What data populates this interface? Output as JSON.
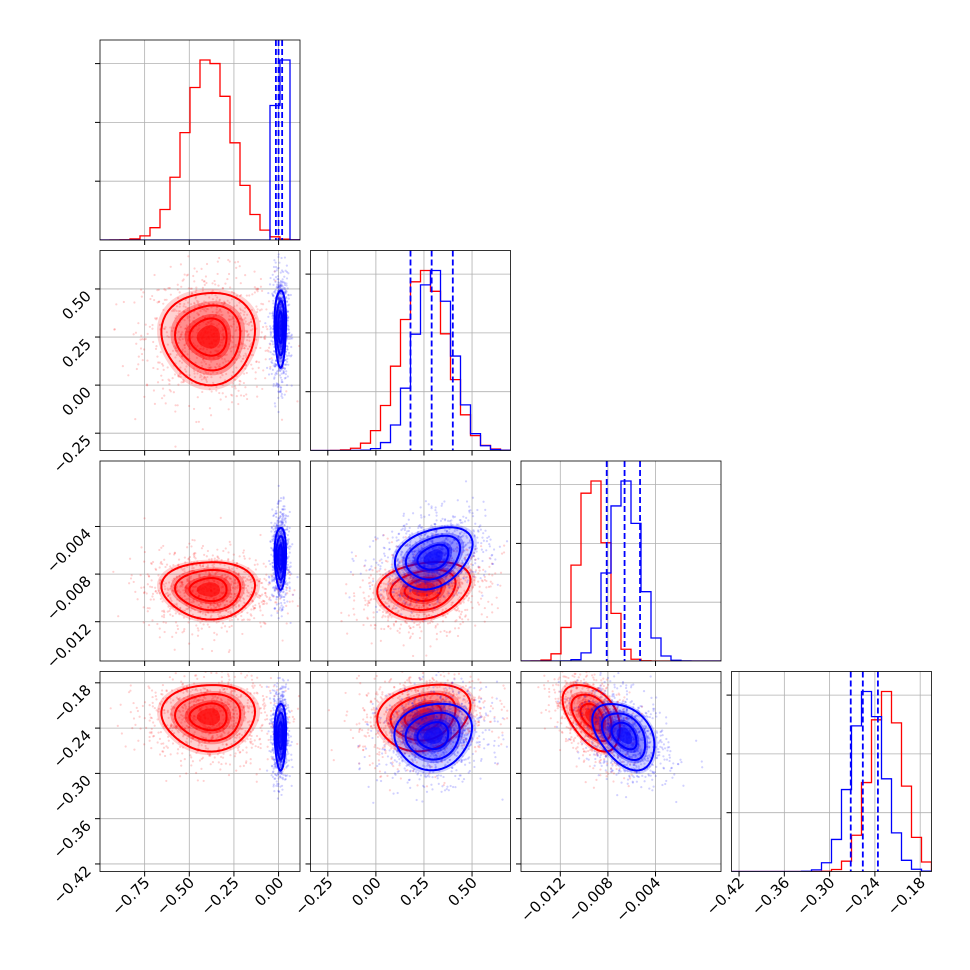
{
  "chart_data": {
    "type": "corner",
    "title": "",
    "series": [
      {
        "name": "",
        "color": "#ff0000"
      },
      {
        "name": "",
        "color": "#0000ff"
      }
    ],
    "grid": true,
    "parameters": [
      {
        "range": [
          -1.0,
          0.12
        ],
        "ticks": [
          -0.75,
          -0.5,
          -0.25,
          0.0
        ],
        "tick_labels": [
          "−0.75",
          "−0.50",
          "−0.25",
          "0.00"
        ],
        "red": {
          "mean": -0.39,
          "sd": 0.13
        },
        "blue": {
          "mean": 0.01,
          "sd": 0.016
        },
        "blue_quantiles": [
          -0.015,
          0.0,
          0.02
        ]
      },
      {
        "range": [
          -0.34,
          0.7
        ],
        "ticks": [
          -0.25,
          0.0,
          0.25,
          0.5
        ],
        "tick_labels": [
          "−0.25",
          "0.00",
          "0.25",
          "0.50"
        ],
        "red": {
          "mean": 0.25,
          "sd": 0.12
        },
        "blue": {
          "mean": 0.3,
          "sd": 0.1
        },
        "blue_quantiles": [
          0.18,
          0.29,
          0.4
        ]
      },
      {
        "range": [
          -0.0153,
          0.0015
        ],
        "ticks": [
          -0.012,
          -0.008,
          -0.004
        ],
        "tick_labels": [
          "−0.012",
          "−0.008",
          "−0.004"
        ],
        "red": {
          "mean": -0.0093,
          "sd": 0.0012
        },
        "blue": {
          "mean": -0.0066,
          "sd": 0.0013
        },
        "blue_quantiles": [
          -0.0081,
          -0.0066,
          -0.0053
        ]
      },
      {
        "range": [
          -0.43,
          -0.165
        ],
        "ticks": [
          -0.42,
          -0.36,
          -0.3,
          -0.24,
          -0.18
        ],
        "tick_labels": [
          "−0.42",
          "−0.36",
          "−0.30",
          "−0.24",
          "−0.18"
        ],
        "red": {
          "mean": -0.225,
          "sd": 0.022
        },
        "blue": {
          "mean": -0.25,
          "sd": 0.022
        },
        "blue_quantiles": [
          -0.272,
          -0.256,
          -0.236
        ]
      }
    ],
    "correlations": {
      "1-0": {
        "red": 0.0,
        "blue": 0.0
      },
      "2-0": {
        "red": 0.0,
        "blue": 0.0
      },
      "2-1": {
        "red": 0.2,
        "blue": 0.3
      },
      "3-0": {
        "red": 0.0,
        "blue": 0.0
      },
      "3-1": {
        "red": 0.2,
        "blue": 0.1
      },
      "3-2": {
        "red": -0.45,
        "blue": -0.4
      }
    }
  }
}
